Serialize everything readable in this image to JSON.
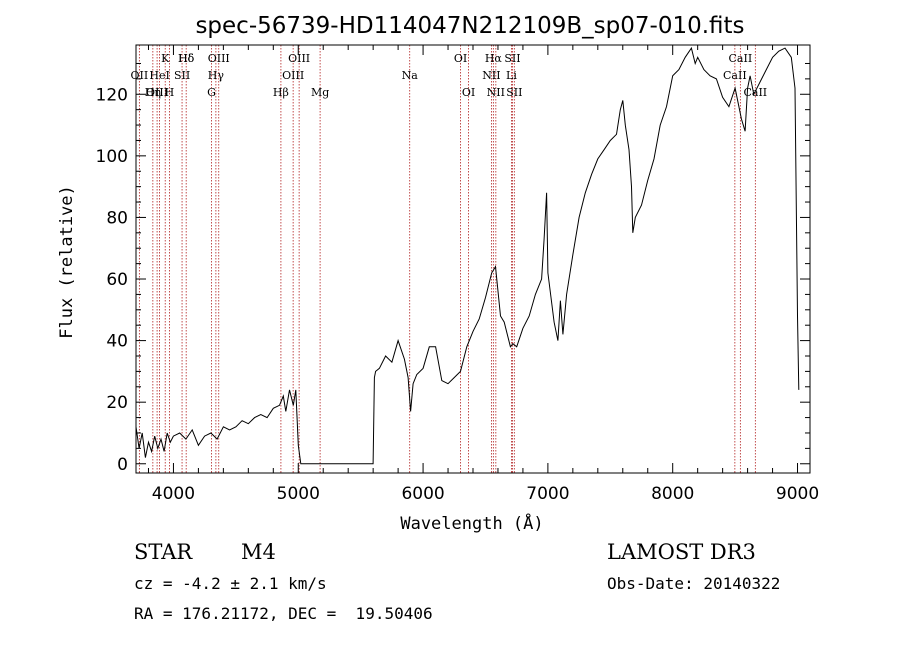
{
  "chart_data": {
    "type": "line",
    "title": "spec-56739-HD114047N212109B_sp07-010.fits",
    "xlabel": "Wavelength (Å)",
    "ylabel": "Flux (relative)",
    "xlim": [
      3700,
      9100
    ],
    "ylim": [
      -3,
      136
    ],
    "x_ticks": [
      4000,
      5000,
      6000,
      7000,
      8000,
      9000
    ],
    "y_ticks": [
      0,
      20,
      40,
      60,
      80,
      100,
      120
    ],
    "x_tick_labels": [
      "4000",
      "5000",
      "6000",
      "7000",
      "8000",
      "9000"
    ],
    "y_tick_labels": [
      "0",
      "20",
      "40",
      "60",
      "80",
      "100",
      "120"
    ],
    "series": [
      {
        "name": "flux",
        "x": [
          3700,
          3725,
          3750,
          3775,
          3800,
          3825,
          3850,
          3875,
          3900,
          3925,
          3950,
          3975,
          4000,
          4050,
          4100,
          4150,
          4200,
          4250,
          4300,
          4350,
          4400,
          4450,
          4500,
          4550,
          4600,
          4650,
          4700,
          4750,
          4800,
          4850,
          4880,
          4900,
          4930,
          4960,
          4980,
          5000,
          5020,
          5050,
          5100,
          5200,
          5300,
          5400,
          5500,
          5600,
          5610,
          5620,
          5650,
          5700,
          5750,
          5800,
          5850,
          5880,
          5900,
          5920,
          5950,
          6000,
          6050,
          6100,
          6150,
          6200,
          6250,
          6300,
          6350,
          6400,
          6450,
          6500,
          6550,
          6580,
          6600,
          6620,
          6650,
          6700,
          6720,
          6750,
          6800,
          6850,
          6900,
          6950,
          6970,
          6990,
          7000,
          7050,
          7080,
          7100,
          7120,
          7150,
          7200,
          7250,
          7300,
          7350,
          7400,
          7450,
          7500,
          7550,
          7580,
          7600,
          7620,
          7650,
          7670,
          7680,
          7700,
          7750,
          7800,
          7850,
          7900,
          7950,
          8000,
          8050,
          8100,
          8150,
          8180,
          8200,
          8250,
          8300,
          8350,
          8400,
          8450,
          8500,
          8550,
          8580,
          8600,
          8620,
          8650,
          8700,
          8750,
          8800,
          8850,
          8900,
          8950,
          8980,
          9000,
          9010
        ],
        "y": [
          12,
          5,
          10,
          2,
          7,
          4,
          9,
          5,
          8,
          4,
          10,
          7,
          9,
          10,
          8,
          11,
          6,
          9,
          10,
          8,
          12,
          11,
          12,
          14,
          13,
          15,
          16,
          15,
          18,
          19,
          22,
          17,
          24,
          19,
          24,
          6,
          0,
          0,
          0,
          0,
          0,
          0,
          0,
          0,
          28,
          30,
          31,
          35,
          33,
          40,
          34,
          28,
          17,
          26,
          29,
          31,
          38,
          38,
          27,
          26,
          28,
          30,
          38,
          43,
          47,
          54,
          62,
          64,
          56,
          48,
          46,
          38,
          39,
          38,
          44,
          48,
          55,
          60,
          73,
          88,
          62,
          46,
          40,
          53,
          42,
          55,
          68,
          80,
          88,
          94,
          99,
          102,
          105,
          107,
          115,
          118,
          110,
          102,
          90,
          75,
          80,
          84,
          92,
          99,
          110,
          116,
          126,
          128,
          132,
          135,
          130,
          132,
          128,
          126,
          125,
          119,
          116,
          122,
          112,
          108,
          122,
          126,
          120,
          124,
          128,
          132,
          134,
          135,
          132,
          122,
          48,
          24
        ]
      }
    ],
    "spectral_lines": [
      {
        "label": "Hδ",
        "wavelength": 4102,
        "row": 1
      },
      {
        "label": "K",
        "wavelength": 3934,
        "row": 1
      },
      {
        "label": "Hδ",
        "wavelength": 4102,
        "row": 1
      },
      {
        "label": "OIII",
        "wavelength": 4363,
        "row": 1
      },
      {
        "label": "OIII",
        "wavelength": 5007,
        "row": 1
      },
      {
        "label": "OI",
        "wavelength": 6300,
        "row": 1
      },
      {
        "label": "Hα",
        "wavelength": 6563,
        "row": 1
      },
      {
        "label": "SII",
        "wavelength": 6716,
        "row": 1
      },
      {
        "label": "CaII",
        "wavelength": 8542,
        "row": 1
      },
      {
        "label": "OII",
        "wavelength": 3727,
        "row": 2
      },
      {
        "label": "HeI",
        "wavelength": 3889,
        "row": 2
      },
      {
        "label": "SII",
        "wavelength": 4069,
        "row": 2
      },
      {
        "label": "Hγ",
        "wavelength": 4340,
        "row": 2
      },
      {
        "label": "OIII",
        "wavelength": 4959,
        "row": 2
      },
      {
        "label": "Na",
        "wavelength": 5893,
        "row": 2
      },
      {
        "label": "NII",
        "wavelength": 6548,
        "row": 2
      },
      {
        "label": "Li",
        "wavelength": 6708,
        "row": 2
      },
      {
        "label": "CaII",
        "wavelength": 8498,
        "row": 2
      },
      {
        "label": "OIII",
        "wavelength": 3869,
        "row": 3
      },
      {
        "label": "Hη",
        "wavelength": 3835,
        "row": 3
      },
      {
        "label": "H",
        "wavelength": 3968,
        "row": 3
      },
      {
        "label": "G",
        "wavelength": 4305,
        "row": 3
      },
      {
        "label": "Hβ",
        "wavelength": 4861,
        "row": 3
      },
      {
        "label": "Mg",
        "wavelength": 5175,
        "row": 3
      },
      {
        "label": "OI",
        "wavelength": 6364,
        "row": 3
      },
      {
        "label": "NII",
        "wavelength": 6583,
        "row": 3
      },
      {
        "label": "SII",
        "wavelength": 6731,
        "row": 3
      },
      {
        "label": "CaII",
        "wavelength": 8662,
        "row": 3
      }
    ],
    "line_markers": [
      3727,
      3835,
      3869,
      3889,
      3934,
      3968,
      4069,
      4102,
      4305,
      4340,
      4363,
      4861,
      4959,
      5007,
      5175,
      5893,
      6300,
      6364,
      6548,
      6563,
      6583,
      6708,
      6716,
      6731,
      8498,
      8542,
      8662
    ],
    "grid": false,
    "legend": "none"
  },
  "info": {
    "object_class": "STAR",
    "subclass": "M4",
    "survey": "LAMOST DR3",
    "cz": "cz = -4.2 ± 2.1 km/s",
    "obs_date": "Obs-Date: 20140322",
    "coords": "RA = 176.21172, DEC =  19.50406"
  },
  "colors": {
    "marker_line": "#b22222",
    "spectrum": "#000000",
    "axis": "#000000"
  }
}
